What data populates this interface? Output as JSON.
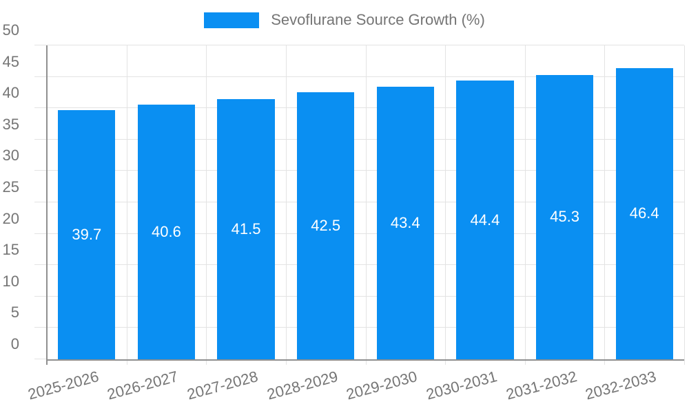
{
  "chart_data": {
    "type": "bar",
    "title": "",
    "legend": {
      "position": "top",
      "entries": [
        {
          "label": "Sevoflurane Source Growth (%)",
          "color": "#0a8ff2"
        }
      ]
    },
    "categories": [
      "2025-2026",
      "2026-2027",
      "2027-2028",
      "2028-2029",
      "2029-2030",
      "2030-2031",
      "2031-2032",
      "2032-2033"
    ],
    "series": [
      {
        "name": "Sevoflurane Source Growth (%)",
        "values": [
          39.7,
          40.6,
          41.5,
          42.5,
          43.4,
          44.4,
          45.3,
          46.4
        ]
      }
    ],
    "value_labels": [
      "39.7",
      "40.6",
      "41.5",
      "42.5",
      "43.4",
      "44.4",
      "45.3",
      "46.4"
    ],
    "xlabel": "",
    "ylabel": "",
    "ylim": [
      0,
      50
    ],
    "ytick_step": 5,
    "ytick_labels": [
      "0",
      "5",
      "10",
      "15",
      "20",
      "25",
      "30",
      "35",
      "40",
      "45",
      "50"
    ],
    "grid": true,
    "colors": {
      "bar": "#0a8ff2",
      "bar_label_text": "#ffffff",
      "grid_line": "#e3e3e3",
      "axis_line": "#8f8f8f",
      "tick_text": "#757575",
      "legend_text": "#757575",
      "background": "#ffffff"
    }
  }
}
